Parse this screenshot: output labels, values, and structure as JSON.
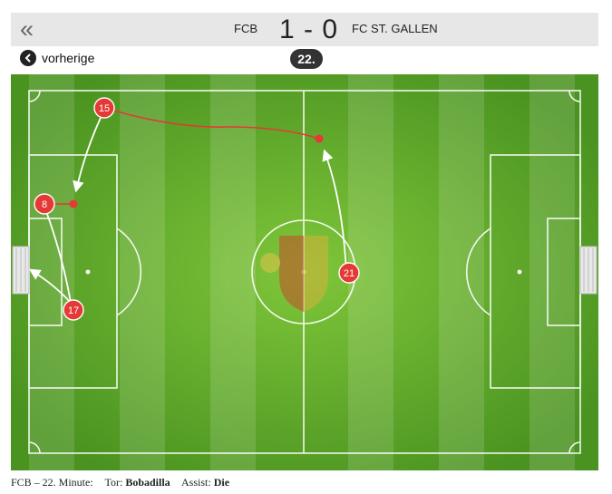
{
  "header": {
    "back_icon": "double-chevron-left-icon",
    "home_team": "FCB",
    "score": "1 - 0",
    "away_team": "FC ST. GALLEN"
  },
  "nav": {
    "prev_icon": "chevron-left-icon",
    "prev_label": "vorherige",
    "minute": "22."
  },
  "pitch": {
    "grass_color": "#4f9a1f",
    "marker_color": "#e53935",
    "arrow_color": "#ffffff",
    "path_color": "#e53935",
    "players": [
      {
        "number": "15"
      },
      {
        "number": "8"
      },
      {
        "number": "17"
      },
      {
        "number": "21"
      }
    ]
  },
  "caption": {
    "team_minute": "FCB – 22. Minute:",
    "goal_label": "Tor:",
    "goal_player": "Bobadilla",
    "assist_label": "Assist:",
    "assist_player": "Die"
  }
}
